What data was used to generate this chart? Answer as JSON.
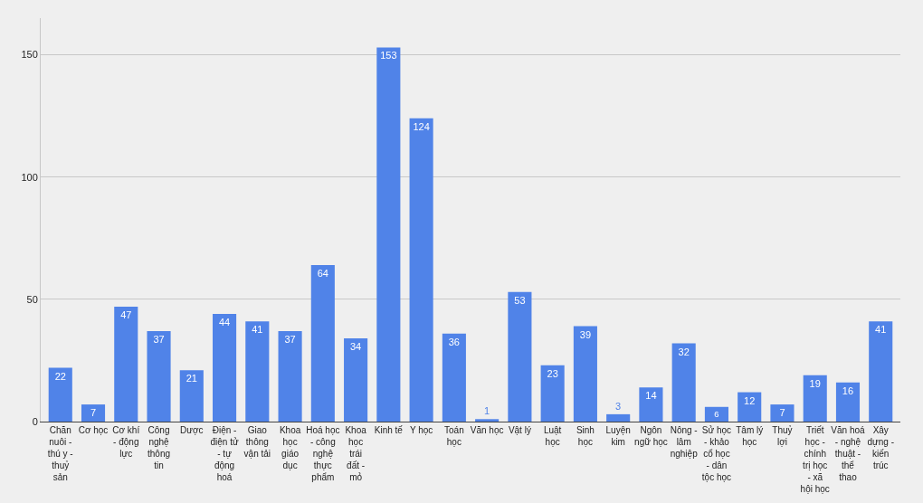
{
  "chart_data": {
    "type": "bar",
    "categories": [
      "Chăn nuôi - thú y - thuỷ sản",
      "Cơ học",
      "Cơ khí - động lực",
      "Công nghệ thông tin",
      "Dược",
      "Điện - điện tử - tự động hoá",
      "Giao thông vận tải",
      "Khoa học giáo dục",
      "Hoá học - công nghệ thực phẩm",
      "Khoa học trái đất - mỏ",
      "Kinh tế",
      "Y học",
      "Toán học",
      "Văn học",
      "Vật lý",
      "Luật học",
      "Sinh học",
      "Luyện kim",
      "Ngôn ngữ học",
      "Nông - lâm nghiệp",
      "Sử học - khảo cổ học - dân tộc học",
      "Tâm lý học",
      "Thuỷ lợi",
      "Triết học - chính trị học - xã hội học",
      "Văn hoá - nghệ thuật - thể thao",
      "Xây dựng - kiến trúc"
    ],
    "values": [
      22,
      7,
      47,
      37,
      21,
      44,
      41,
      37,
      64,
      34,
      153,
      124,
      36,
      1,
      53,
      23,
      39,
      3,
      14,
      32,
      6,
      12,
      7,
      19,
      16,
      41
    ],
    "color": "#5083e8",
    "ylim": [
      0,
      165
    ],
    "yticks": [
      0,
      50,
      100,
      150
    ],
    "grid": "y",
    "legend": false,
    "data_labels": true
  }
}
